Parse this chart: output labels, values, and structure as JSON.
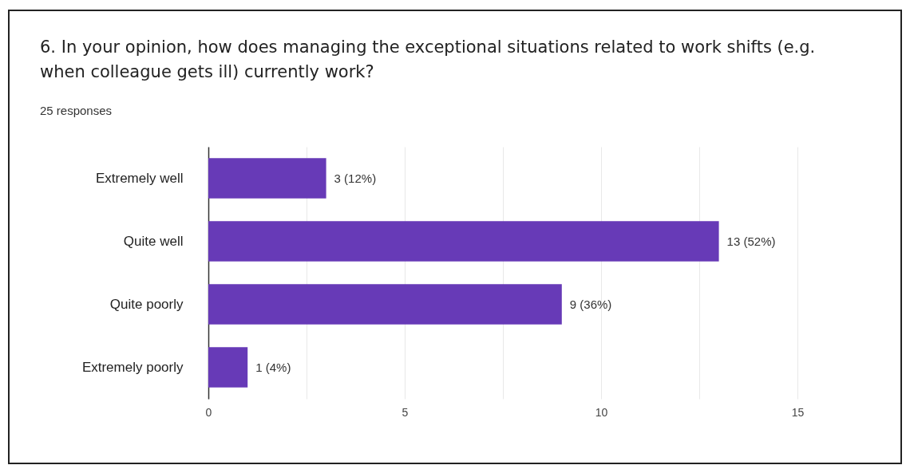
{
  "chart_data": {
    "type": "bar",
    "orientation": "horizontal",
    "title": "6. In your opinion, how does managing the exceptional situations related to work shifts (e.g. when colleague gets ill) currently work?",
    "subtitle": "25 responses",
    "categories": [
      "Extremely well",
      "Quite well",
      "Quite poorly",
      "Extremely poorly"
    ],
    "values": [
      3,
      13,
      9,
      1
    ],
    "value_labels": [
      "3 (12%)",
      "13 (52%)",
      "9 (36%)",
      "1 (4%)"
    ],
    "color": "#673ab7",
    "xlim": [
      0,
      15
    ],
    "xticks": [
      0,
      {
        "value": 2.5,
        "label": null
      },
      5,
      {
        "value": 7.5,
        "label": null
      },
      10,
      {
        "value": 12.5,
        "label": null
      },
      15
    ],
    "grid": "x"
  }
}
